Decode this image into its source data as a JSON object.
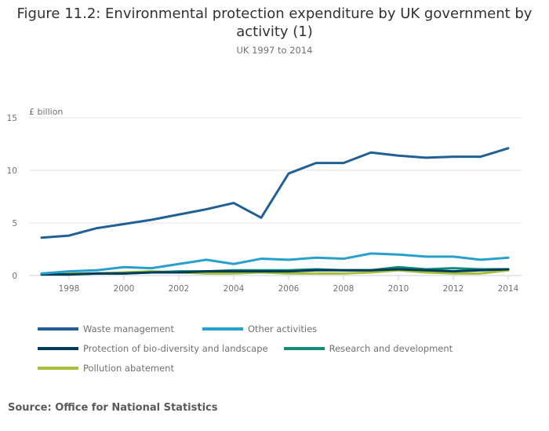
{
  "chart_data": {
    "type": "line",
    "title": "Figure 11.2: Environmental protection expenditure by UK government by activity (1)",
    "subtitle": "UK 1997 to 2014",
    "ylabel": "£ billion",
    "xlabel": "",
    "ylim": [
      0,
      15
    ],
    "yticks": [
      0,
      5,
      10,
      15
    ],
    "xticks": [
      1998,
      2000,
      2002,
      2004,
      2006,
      2008,
      2010,
      2012,
      2014
    ],
    "grid": true,
    "legend_position": "bottom",
    "x": [
      1997,
      1998,
      1999,
      2000,
      2001,
      2002,
      2003,
      2004,
      2005,
      2006,
      2007,
      2008,
      2009,
      2010,
      2011,
      2012,
      2013,
      2014
    ],
    "series": [
      {
        "name": "Waste management",
        "color": "#206095",
        "values": [
          3.6,
          3.8,
          4.5,
          4.9,
          5.3,
          5.8,
          6.3,
          6.9,
          5.5,
          9.7,
          10.7,
          10.7,
          11.7,
          11.4,
          11.2,
          11.3,
          11.3,
          12.1
        ]
      },
      {
        "name": "Other activities",
        "color": "#27a0cc",
        "values": [
          0.2,
          0.4,
          0.5,
          0.8,
          0.7,
          1.1,
          1.5,
          1.1,
          1.6,
          1.5,
          1.7,
          1.6,
          2.1,
          2.0,
          1.8,
          1.8,
          1.5,
          1.7
        ]
      },
      {
        "name": "Protection of bio-diversity and landscape",
        "color": "#003c57",
        "values": [
          0.1,
          0.1,
          0.2,
          0.2,
          0.3,
          0.3,
          0.4,
          0.4,
          0.4,
          0.4,
          0.5,
          0.5,
          0.5,
          0.6,
          0.5,
          0.4,
          0.5,
          0.6
        ]
      },
      {
        "name": "Research and development",
        "color": "#118c7b",
        "values": [
          0.1,
          0.1,
          0.2,
          0.2,
          0.3,
          0.4,
          0.4,
          0.5,
          0.5,
          0.5,
          0.6,
          0.5,
          0.5,
          0.8,
          0.6,
          0.7,
          0.6,
          0.6
        ]
      },
      {
        "name": "Pollution abatement",
        "color": "#a8bd3a",
        "values": [
          0.1,
          0.2,
          0.2,
          0.3,
          0.4,
          0.3,
          0.2,
          0.2,
          0.3,
          0.2,
          0.2,
          0.2,
          0.3,
          0.5,
          0.3,
          0.2,
          0.2,
          0.5
        ]
      }
    ]
  },
  "source": "Source: Office for National Statistics"
}
